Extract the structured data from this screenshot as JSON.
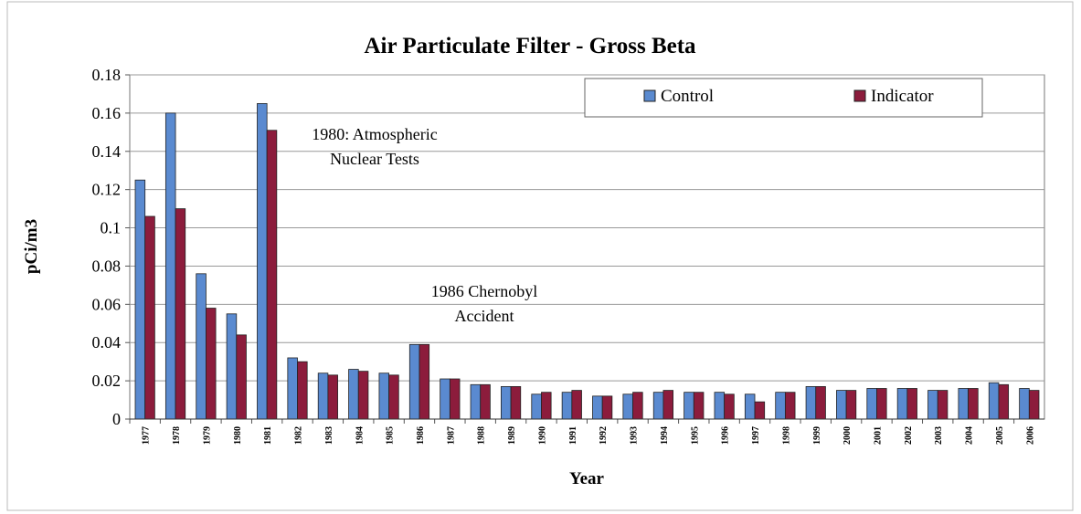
{
  "chart_data": {
    "type": "bar",
    "title": "Air Particulate Filter - Gross Beta",
    "x_label": "Year",
    "y_label": "pCi/m3",
    "categories": [
      "1977",
      "1978",
      "1979",
      "1980",
      "1981",
      "1982",
      "1983",
      "1984",
      "1985",
      "1986",
      "1987",
      "1988",
      "1989",
      "1990",
      "1991",
      "1992",
      "1993",
      "1994",
      "1995",
      "1996",
      "1997",
      "1998",
      "1999",
      "2000",
      "2001",
      "2002",
      "2003",
      "2004",
      "2005",
      "2006"
    ],
    "series": [
      {
        "name": "Control",
        "color": "#5a8ad0",
        "values": [
          0.125,
          0.16,
          0.076,
          0.055,
          0.165,
          0.032,
          0.024,
          0.026,
          0.024,
          0.039,
          0.021,
          0.018,
          0.017,
          0.013,
          0.014,
          0.012,
          0.013,
          0.014,
          0.014,
          0.014,
          0.013,
          0.014,
          0.017,
          0.015,
          0.016,
          0.016,
          0.015,
          0.016,
          0.019,
          0.016
        ]
      },
      {
        "name": "Indicator",
        "color": "#8c1c3c",
        "values": [
          0.106,
          0.11,
          0.058,
          0.044,
          0.151,
          0.03,
          0.023,
          0.025,
          0.023,
          0.039,
          0.021,
          0.018,
          0.017,
          0.014,
          0.015,
          0.012,
          0.014,
          0.015,
          0.014,
          0.013,
          0.009,
          0.014,
          0.017,
          0.015,
          0.016,
          0.016,
          0.015,
          0.016,
          0.018,
          0.015
        ]
      }
    ],
    "ylim": [
      0,
      0.18
    ],
    "yticks": [
      0,
      0.02,
      0.04,
      0.06,
      0.08,
      0.1,
      0.12,
      0.14,
      0.16,
      0.18
    ],
    "grid": true,
    "legend": "top-right",
    "annotations": [
      {
        "lines": [
          "1980: Atmospheric",
          "Nuclear Tests"
        ]
      },
      {
        "lines": [
          "1986 Chernobyl",
          "Accident"
        ]
      }
    ]
  }
}
